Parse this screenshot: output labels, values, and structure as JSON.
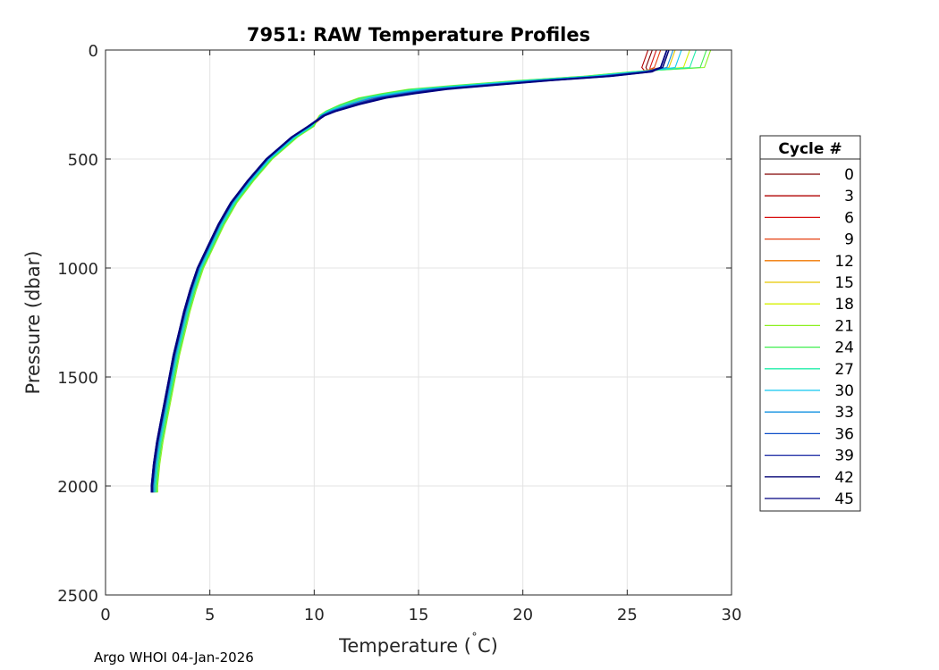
{
  "chart_data": {
    "type": "line",
    "title": "7951: RAW Temperature Profiles",
    "xlabel": "Temperature (",
    "xlabel_degree": "˚",
    "xlabel_unit": "C)",
    "ylabel": "Pressure (dbar)",
    "xlim": [
      0,
      30
    ],
    "ylim": [
      0,
      2500
    ],
    "y_reversed": true,
    "grid": true,
    "xticks": [
      "0",
      "5",
      "10",
      "15",
      "20",
      "25",
      "30"
    ],
    "yticks": [
      "0",
      "500",
      "1000",
      "1500",
      "2000",
      "2500"
    ],
    "legend": {
      "title": "Cycle #",
      "placement": "outside-right",
      "entries": [
        {
          "label": "0",
          "color": "#800000"
        },
        {
          "label": "3",
          "color": "#b00000"
        },
        {
          "label": "6",
          "color": "#d81010"
        },
        {
          "label": "9",
          "color": "#e64010"
        },
        {
          "label": "12",
          "color": "#f07800"
        },
        {
          "label": "15",
          "color": "#e6c800"
        },
        {
          "label": "18",
          "color": "#d6f000"
        },
        {
          "label": "21",
          "color": "#8cf020"
        },
        {
          "label": "24",
          "color": "#40ee50"
        },
        {
          "label": "27",
          "color": "#20eeaa"
        },
        {
          "label": "30",
          "color": "#10c8f0"
        },
        {
          "label": "33",
          "color": "#1090e0"
        },
        {
          "label": "36",
          "color": "#1050c8"
        },
        {
          "label": "39",
          "color": "#1020a0"
        },
        {
          "label": "42",
          "color": "#0a0a78"
        },
        {
          "label": "45",
          "color": "#000080"
        }
      ]
    },
    "base_profile": {
      "pressure": [
        0,
        10,
        40,
        80,
        100,
        120,
        140,
        160,
        180,
        200,
        220,
        250,
        280,
        300,
        350,
        400,
        450,
        500,
        600,
        700,
        800,
        900,
        1000,
        1100,
        1200,
        1300,
        1400,
        1500,
        1600,
        1700,
        1800,
        1900,
        2000,
        2030
      ],
      "temperature": [
        26.8,
        26.8,
        26.7,
        26.6,
        26.0,
        24.0,
        21.0,
        18.5,
        16.0,
        14.5,
        13.2,
        12.0,
        11.0,
        10.5,
        9.8,
        9.0,
        8.4,
        7.8,
        6.9,
        6.1,
        5.5,
        5.0,
        4.5,
        4.15,
        3.85,
        3.6,
        3.35,
        3.15,
        2.95,
        2.75,
        2.55,
        2.4,
        2.3,
        2.3
      ]
    },
    "series": [
      {
        "name": "0",
        "temp_offset": 0.0,
        "surface_temp": 26.2,
        "thermocline_shift": 0.0
      },
      {
        "name": "3",
        "temp_offset": 0.05,
        "surface_temp": 26.0,
        "thermocline_shift": -0.3
      },
      {
        "name": "6",
        "temp_offset": -0.05,
        "surface_temp": 26.4,
        "thermocline_shift": 0.2
      },
      {
        "name": "9",
        "temp_offset": 0.1,
        "surface_temp": 26.6,
        "thermocline_shift": -0.5
      },
      {
        "name": "12",
        "temp_offset": 0.0,
        "surface_temp": 26.9,
        "thermocline_shift": -0.8
      },
      {
        "name": "15",
        "temp_offset": 0.15,
        "surface_temp": 27.3,
        "thermocline_shift": -1.2
      },
      {
        "name": "18",
        "temp_offset": 0.1,
        "surface_temp": 28.0,
        "thermocline_shift": -1.5
      },
      {
        "name": "21",
        "temp_offset": 0.2,
        "surface_temp": 29.0,
        "thermocline_shift": -1.8
      },
      {
        "name": "24",
        "temp_offset": 0.15,
        "surface_temp": 28.8,
        "thermocline_shift": -1.6
      },
      {
        "name": "27",
        "temp_offset": 0.1,
        "surface_temp": 28.3,
        "thermocline_shift": -1.3
      },
      {
        "name": "30",
        "temp_offset": 0.05,
        "surface_temp": 27.6,
        "thermocline_shift": -0.9
      },
      {
        "name": "33",
        "temp_offset": 0.0,
        "surface_temp": 27.2,
        "thermocline_shift": -0.6
      },
      {
        "name": "36",
        "temp_offset": -0.05,
        "surface_temp": 27.0,
        "thermocline_shift": -0.2
      },
      {
        "name": "39",
        "temp_offset": -0.1,
        "surface_temp": 26.9,
        "thermocline_shift": 0.1
      },
      {
        "name": "42",
        "temp_offset": -0.05,
        "surface_temp": 27.0,
        "thermocline_shift": 0.3
      },
      {
        "name": "45",
        "temp_offset": -0.1,
        "surface_temp": 26.9,
        "thermocline_shift": 0.5
      }
    ]
  },
  "footer": "Argo WHOI 04-Jan-2026"
}
